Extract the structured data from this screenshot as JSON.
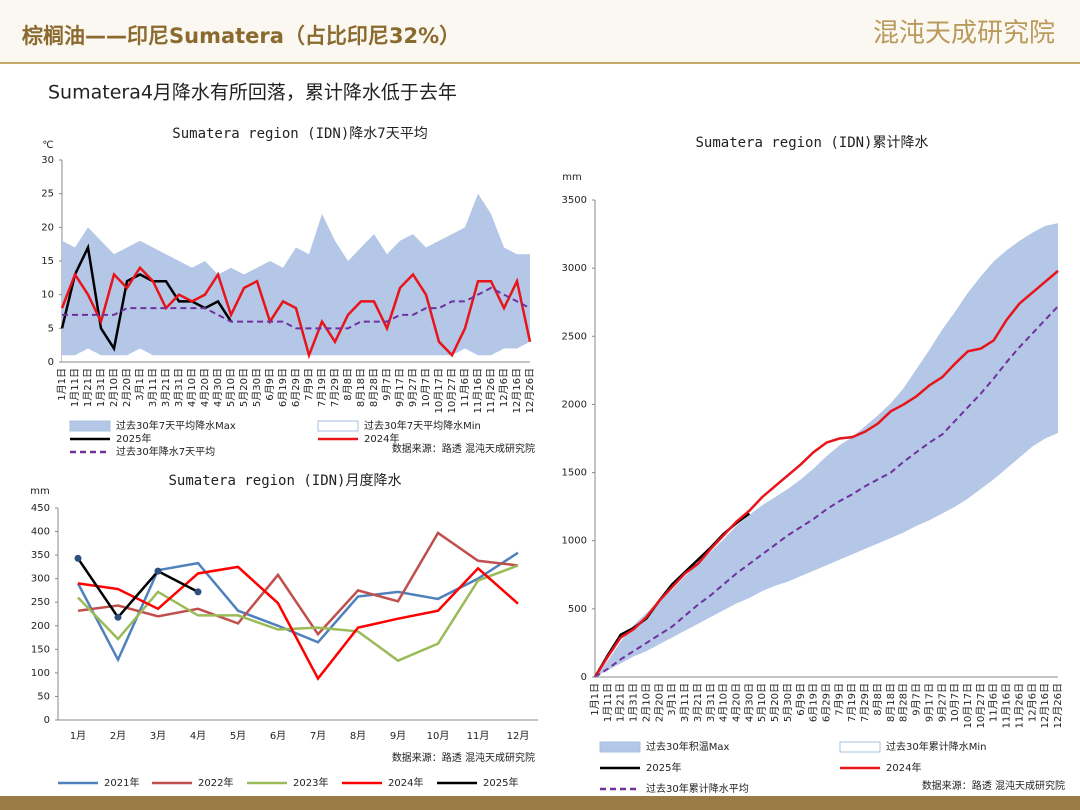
{
  "header": {
    "title": "棕榈油——印尼Sumatera（占比印尼32%）",
    "logo": "混沌天成研究院"
  },
  "subtitle": "Sumatera4月降水有所回落，累计降水低于去年",
  "chart_data": [
    {
      "type": "line",
      "title": "Sumatera region (IDN)降水7天平均",
      "y_unit": "℃",
      "source": "数据来源：路透 混沌天成研究院",
      "categories": [
        "1月1日",
        "1月11日",
        "1月21日",
        "1月31日",
        "2月10日",
        "2月20日",
        "3月1日",
        "3月11日",
        "3月21日",
        "3月31日",
        "4月10日",
        "4月20日",
        "4月30日",
        "5月10日",
        "5月20日",
        "5月30日",
        "6月9日",
        "6月19日",
        "6月29日",
        "7月9日",
        "7月19日",
        "7月29日",
        "8月8日",
        "8月18日",
        "8月28日",
        "9月7日",
        "9月17日",
        "9月27日",
        "10月7日",
        "10月17日",
        "10月27日",
        "11月6日",
        "11月16日",
        "11月26日",
        "12月6日",
        "12月16日",
        "12月26日"
      ],
      "ylim": [
        0,
        30
      ],
      "yticks": [
        0,
        5,
        10,
        15,
        20,
        25,
        30
      ],
      "series": [
        {
          "name": "过去30年7天平均降水Max",
          "color": "#b4c7e7",
          "type": "area",
          "values": [
            18,
            17,
            20,
            18,
            16,
            17,
            18,
            17,
            16,
            15,
            14,
            15,
            13,
            14,
            13,
            14,
            15,
            14,
            17,
            16,
            22,
            18,
            15,
            17,
            19,
            16,
            18,
            19,
            17,
            18,
            19,
            20,
            25,
            22,
            17,
            16,
            16
          ]
        },
        {
          "name": "过去30年7天平均降水Min",
          "color": "#ffffff",
          "type": "area",
          "values": [
            1,
            1,
            2,
            1,
            1,
            1,
            2,
            1,
            1,
            1,
            1,
            1,
            1,
            1,
            1,
            1,
            1,
            1,
            1,
            1,
            1,
            1,
            1,
            1,
            1,
            1,
            1,
            1,
            1,
            1,
            1,
            2,
            1,
            1,
            2,
            2,
            3
          ]
        },
        {
          "name": "2025年",
          "color": "#000000",
          "values": [
            5,
            13,
            17,
            5,
            2,
            12,
            13,
            12,
            12,
            9,
            9,
            8,
            9,
            6,
            null,
            null,
            null,
            null,
            null,
            null,
            null,
            null,
            null,
            null,
            null,
            null,
            null,
            null,
            null,
            null,
            null,
            null,
            null,
            null,
            null,
            null,
            null
          ]
        },
        {
          "name": "2024年",
          "color": "#e8141a",
          "values": [
            8,
            13,
            10,
            6,
            13,
            11,
            14,
            12,
            8,
            10,
            9,
            10,
            13,
            7,
            11,
            12,
            6,
            9,
            8,
            1,
            6,
            3,
            7,
            9,
            9,
            5,
            11,
            13,
            10,
            3,
            1,
            5,
            12,
            12,
            8,
            12,
            3
          ]
        },
        {
          "name": "过去30年降水7天平均",
          "color": "#7030a0",
          "dash": true,
          "values": [
            7,
            7,
            7,
            7,
            7,
            8,
            8,
            8,
            8,
            8,
            8,
            8,
            7,
            6,
            6,
            6,
            6,
            6,
            5,
            5,
            5,
            5,
            5,
            6,
            6,
            6,
            7,
            7,
            8,
            8,
            9,
            9,
            10,
            11,
            10,
            9,
            8
          ]
        }
      ]
    },
    {
      "type": "line",
      "title": "Sumatera region (IDN)月度降水",
      "y_unit": "mm",
      "source": "数据来源：路透  混沌天成研究院",
      "categories": [
        "1月",
        "2月",
        "3月",
        "4月",
        "5月",
        "6月",
        "7月",
        "8月",
        "9月",
        "10月",
        "11月",
        "12月"
      ],
      "ylim": [
        0,
        450
      ],
      "yticks": [
        0,
        50,
        100,
        150,
        200,
        250,
        300,
        350,
        400,
        450
      ],
      "series": [
        {
          "name": "2021年",
          "color": "#4f81bd",
          "values": [
            290,
            128,
            318,
            333,
            232,
            200,
            165,
            262,
            272,
            257,
            300,
            355
          ]
        },
        {
          "name": "2022年",
          "color": "#c0504d",
          "values": [
            232,
            243,
            220,
            236,
            205,
            308,
            182,
            275,
            252,
            397,
            338,
            328
          ]
        },
        {
          "name": "2023年",
          "color": "#9bbb59",
          "values": [
            260,
            172,
            272,
            222,
            222,
            192,
            196,
            188,
            126,
            162,
            296,
            328
          ]
        },
        {
          "name": "2024年",
          "color": "#ff0000",
          "values": [
            290,
            278,
            236,
            311,
            325,
            248,
            88,
            196,
            215,
            232,
            322,
            247
          ]
        },
        {
          "name": "2025年",
          "color": "#000000",
          "marker": true,
          "values": [
            343,
            218,
            316,
            272,
            null,
            null,
            null,
            null,
            null,
            null,
            null,
            null
          ]
        }
      ]
    },
    {
      "type": "line",
      "title": "Sumatera region (IDN)累计降水",
      "y_unit": "mm",
      "source": "数据来源：路透 混沌天成研究院",
      "categories": [
        "1月1日",
        "1月11日",
        "1月21日",
        "1月31日",
        "2月10日",
        "2月20日",
        "3月1日",
        "3月11日",
        "3月21日",
        "3月31日",
        "4月10日",
        "4月20日",
        "4月30日",
        "5月10日",
        "5月20日",
        "5月30日",
        "6月9日",
        "6月19日",
        "6月29日",
        "7月9日",
        "7月19日",
        "7月29日",
        "8月8日",
        "8月18日",
        "8月28日",
        "9月7日",
        "9月17日",
        "9月27日",
        "10月7日",
        "10月17日",
        "10月27日",
        "11月6日",
        "11月16日",
        "11月26日",
        "12月6日",
        "12月16日",
        "12月26日"
      ],
      "ylim": [
        0,
        3500
      ],
      "yticks": [
        0,
        500,
        1000,
        1500,
        2000,
        2500,
        3000,
        3500
      ],
      "series": [
        {
          "name": "过去30年积温Max",
          "color": "#b4c7e7",
          "type": "area",
          "values": [
            0,
            120,
            260,
            380,
            470,
            560,
            640,
            740,
            830,
            920,
            1010,
            1110,
            1190,
            1260,
            1320,
            1380,
            1450,
            1530,
            1620,
            1700,
            1760,
            1840,
            1920,
            2010,
            2120,
            2260,
            2400,
            2550,
            2680,
            2820,
            2940,
            3050,
            3130,
            3200,
            3260,
            3310,
            3330
          ]
        },
        {
          "name": "过去30年累计降水Min",
          "color": "#ffffff",
          "type": "area",
          "values": [
            0,
            50,
            100,
            150,
            190,
            240,
            290,
            340,
            390,
            440,
            490,
            540,
            580,
            630,
            670,
            700,
            740,
            780,
            820,
            860,
            900,
            940,
            980,
            1020,
            1060,
            1110,
            1150,
            1200,
            1250,
            1310,
            1380,
            1450,
            1530,
            1610,
            1690,
            1750,
            1790
          ]
        },
        {
          "name": "2025年",
          "color": "#000000",
          "values": [
            0,
            160,
            310,
            360,
            430,
            560,
            680,
            770,
            860,
            950,
            1050,
            1130,
            1200,
            null,
            null,
            null,
            null,
            null,
            null,
            null,
            null,
            null,
            null,
            null,
            null,
            null,
            null,
            null,
            null,
            null,
            null,
            null,
            null,
            null,
            null,
            null,
            null
          ]
        },
        {
          "name": "2024年",
          "color": "#e8141a",
          "values": [
            0,
            150,
            290,
            350,
            440,
            560,
            660,
            760,
            830,
            940,
            1040,
            1140,
            1220,
            1320,
            1400,
            1480,
            1560,
            1650,
            1720,
            1750,
            1760,
            1800,
            1860,
            1950,
            2000,
            2060,
            2140,
            2200,
            2300,
            2390,
            2410,
            2470,
            2620,
            2740,
            2820,
            2900,
            2980
          ]
        },
        {
          "name": "过去30年累计降水平均",
          "color": "#7030a0",
          "dash": true,
          "values": [
            0,
            60,
            130,
            190,
            250,
            310,
            370,
            450,
            530,
            600,
            680,
            760,
            830,
            900,
            970,
            1040,
            1100,
            1160,
            1230,
            1290,
            1340,
            1400,
            1450,
            1500,
            1580,
            1650,
            1720,
            1780,
            1880,
            1980,
            2080,
            2190,
            2310,
            2420,
            2520,
            2620,
            2720
          ]
        }
      ]
    }
  ]
}
